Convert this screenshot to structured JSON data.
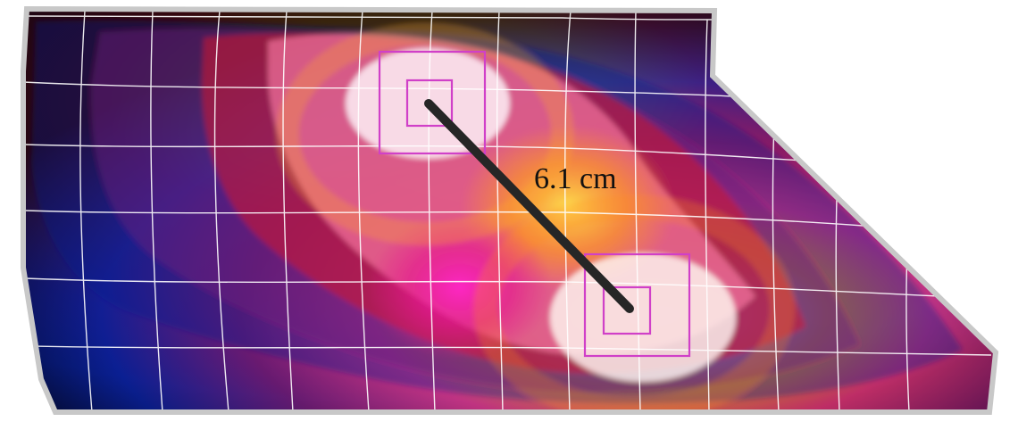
{
  "measurement": {
    "label": "6.1 cm"
  },
  "colors": {
    "background": "#ffffff",
    "map_outline": "#c8c8c8",
    "grid_line": "#ffffff",
    "roi_square": "#d040c8",
    "measure_line": "#262626",
    "label_text": "#111111",
    "colormap": [
      "#000000",
      "#001060",
      "#0a1f9a",
      "#3a1690",
      "#7a1670",
      "#c8102a",
      "#f02a40",
      "#ff2aa8",
      "#ff8a1a",
      "#ffd21a",
      "#f6c8dc",
      "#fff8f0"
    ]
  }
}
